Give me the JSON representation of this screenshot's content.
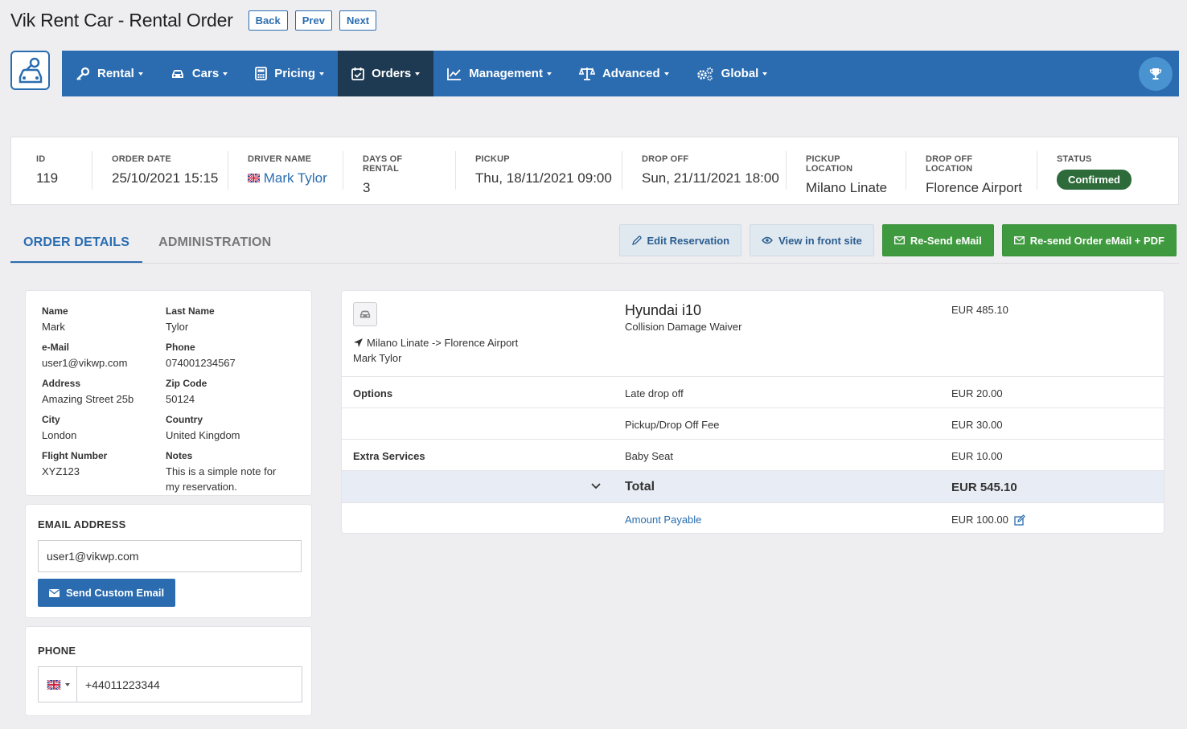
{
  "header": {
    "title": "Vik Rent Car - Rental Order",
    "back_label": "Back",
    "prev_label": "Prev",
    "next_label": "Next"
  },
  "menu": {
    "items": [
      {
        "label": "Rental",
        "icon": "key-icon"
      },
      {
        "label": "Cars",
        "icon": "car-icon"
      },
      {
        "label": "Pricing",
        "icon": "calculator-icon"
      },
      {
        "label": "Orders",
        "icon": "calendar-check-icon",
        "active": true
      },
      {
        "label": "Management",
        "icon": "chart-line-icon"
      },
      {
        "label": "Advanced",
        "icon": "balance-scale-icon"
      },
      {
        "label": "Global",
        "icon": "cogs-icon"
      }
    ],
    "accent": "#2b6cb0",
    "active_bg": "#1e3a52"
  },
  "summary": {
    "id_label": "ID",
    "id": "119",
    "order_date_label": "ORDER DATE",
    "order_date": "25/10/2021 15:15",
    "driver_label": "DRIVER NAME",
    "driver": "Mark Tylor",
    "days_label": "DAYS OF RENTAL",
    "days": "3",
    "pickup_label": "PICKUP",
    "pickup": "Thu, 18/11/2021 09:00",
    "dropoff_label": "DROP OFF",
    "dropoff": "Sun, 21/11/2021 18:00",
    "pickup_loc_label": "PICKUP LOCATION",
    "pickup_loc": "Milano Linate",
    "dropoff_loc_label": "DROP OFF LOCATION",
    "dropoff_loc": "Florence Airport",
    "status_label": "STATUS",
    "status": "Confirmed",
    "status_color": "#2e6b3a"
  },
  "tabs": {
    "order_details": "ORDER DETAILS",
    "administration": "ADMINISTRATION"
  },
  "actions": {
    "edit": "Edit Reservation",
    "view_front": "View in front site",
    "resend_email": "Re-Send eMail",
    "resend_pdf": "Re-send Order eMail + PDF"
  },
  "customer": {
    "name_label": "Name",
    "name": "Mark",
    "last_name_label": "Last Name",
    "last_name": "Tylor",
    "email_label": "e-Mail",
    "email": "user1@vikwp.com",
    "phone_label": "Phone",
    "phone": "074001234567",
    "address_label": "Address",
    "address": "Amazing Street 25b",
    "zip_label": "Zip Code",
    "zip": "50124",
    "city_label": "City",
    "city": "London",
    "country_label": "Country",
    "country": "United Kingdom",
    "flight_label": "Flight Number",
    "flight": "XYZ123",
    "notes_label": "Notes",
    "notes": "This is a simple note for my reservation."
  },
  "email_section": {
    "title": "EMAIL ADDRESS",
    "value": "user1@vikwp.com",
    "button": "Send Custom Email"
  },
  "phone_section": {
    "title": "PHONE",
    "value": "+44011223344",
    "flag": "uk-flag-icon"
  },
  "order": {
    "car_name": "Hyundai i10",
    "car_sub": "Collision Damage Waiver",
    "car_price": "EUR 485.10",
    "route": "Milano Linate -> Florence Airport",
    "driver": "Mark Tylor",
    "options_label": "Options",
    "option1": "Late drop off",
    "option1_price": "EUR 20.00",
    "option2": "Pickup/Drop Off Fee",
    "option2_price": "EUR 30.00",
    "extras_label": "Extra Services",
    "extra1": "Baby Seat",
    "extra1_price": "EUR 10.00",
    "total_label": "Total",
    "total": "EUR 545.10",
    "payable_label": "Amount Payable",
    "payable": "EUR 100.00"
  }
}
